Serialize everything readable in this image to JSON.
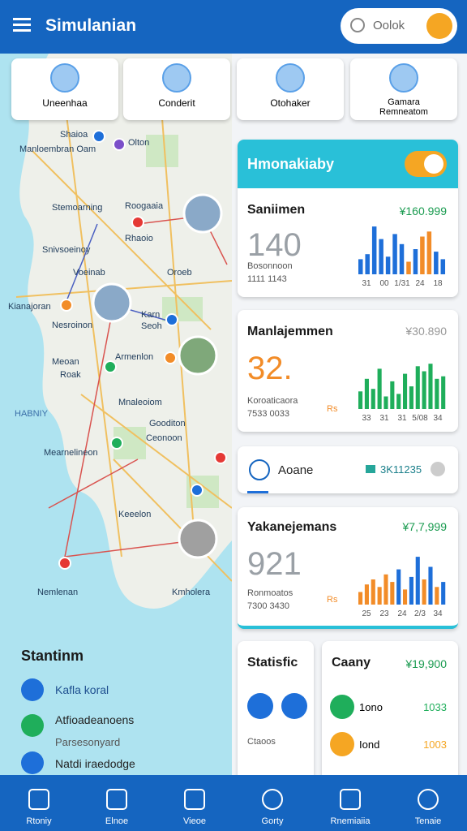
{
  "header": {
    "title": "Simulanian",
    "search": "Oolok"
  },
  "tabs": [
    "Uneenhaa",
    "Conderit",
    "Otohaker",
    "Gamara Remneatom"
  ],
  "map_labels": [
    "Shaioa",
    "Olton",
    "Manloembran Oam",
    "Stemoarning",
    "Roogaaia",
    "Rhaoio",
    "Snivsoeinoy",
    "Voeinab",
    "Oroeb",
    "Kianajoran",
    "Nesroinon",
    "Karn",
    "Seoh",
    "Armenlon",
    "Meoan",
    "Roak",
    "Mnaleoiom",
    "HABNIY",
    "Gooditon",
    "Ceonoon",
    "Mearnelineon",
    "Keeelon",
    "Nemlenan",
    "Kmholera"
  ],
  "stations": {
    "title": "Stantinm",
    "items": [
      "Kafla koral",
      "Atfioadeanoens",
      "Parsesonyard",
      "Natdi iraedodge"
    ]
  },
  "toggle_card": {
    "title": "Hmonakiaby",
    "on": true
  },
  "cards": [
    {
      "title": "Saniimen",
      "amount": "¥160.999",
      "big": "140",
      "sub": [
        "Bosonnoon",
        "1111 1143"
      ],
      "chart": {
        "type": "bar",
        "ylim": [
          0,
          100
        ],
        "values": [
          30,
          40,
          95,
          70,
          35,
          80,
          60,
          25,
          50,
          75,
          85,
          45,
          30
        ],
        "colors": [
          "#1e6fd9",
          "#1e6fd9",
          "#1e6fd9",
          "#1e6fd9",
          "#1e6fd9",
          "#1e6fd9",
          "#1e6fd9",
          "#f28c28",
          "#1e6fd9",
          "#f28c28",
          "#f28c28",
          "#1e6fd9",
          "#1e6fd9"
        ],
        "x_labels": [
          "31",
          "00",
          "1/31",
          "24",
          "18"
        ]
      }
    },
    {
      "title": "Manlajemmen",
      "amount": "¥30.890",
      "big": "32.",
      "sub": [
        "Koroaticaora",
        "7533 0033"
      ],
      "unit": "Rs",
      "chart": {
        "type": "bar",
        "ylim": [
          0,
          100
        ],
        "values": [
          35,
          60,
          40,
          80,
          25,
          55,
          30,
          70,
          45,
          85,
          75,
          90,
          60,
          65
        ],
        "colors": [
          "#1fae5b",
          "#1fae5b",
          "#1fae5b",
          "#1fae5b",
          "#1fae5b",
          "#1fae5b",
          "#1fae5b",
          "#1fae5b",
          "#1fae5b",
          "#1fae5b",
          "#1fae5b",
          "#1fae5b",
          "#1fae5b",
          "#1fae5b"
        ],
        "x_labels": [
          "33",
          "31",
          "31",
          "5/08",
          "34"
        ]
      }
    },
    {
      "title": "Aoane",
      "amount": "3K11235"
    },
    {
      "title": "Yakanejemans",
      "amount": "¥7,7,999",
      "big": "921",
      "sub": [
        "Ronmoatos",
        "7300 3430"
      ],
      "unit": "Rs",
      "chart": {
        "type": "bar",
        "ylim": [
          0,
          100
        ],
        "values": [
          25,
          40,
          50,
          35,
          60,
          45,
          70,
          30,
          55,
          95,
          50,
          75,
          35,
          45
        ],
        "colors": [
          "#f28c28",
          "#f28c28",
          "#f28c28",
          "#f28c28",
          "#f28c28",
          "#f28c28",
          "#1e6fd9",
          "#f28c28",
          "#1e6fd9",
          "#1e6fd9",
          "#f28c28",
          "#1e6fd9",
          "#f28c28",
          "#1e6fd9"
        ],
        "x_labels": [
          "25",
          "23",
          "24",
          "2/3",
          "34"
        ]
      }
    }
  ],
  "statistic": {
    "title": "Statisfic",
    "sub": "Ctaoos"
  },
  "company": {
    "title": "Caany",
    "amount": "¥19,900",
    "rows": [
      {
        "label": "1ono",
        "value": "1033"
      },
      {
        "label": "Iond",
        "value": "1003"
      }
    ]
  },
  "nav": [
    "Rtoniy",
    "Elnoe",
    "Vieoe",
    "Gorty",
    "Rnemiaiia",
    "Tenaie"
  ]
}
